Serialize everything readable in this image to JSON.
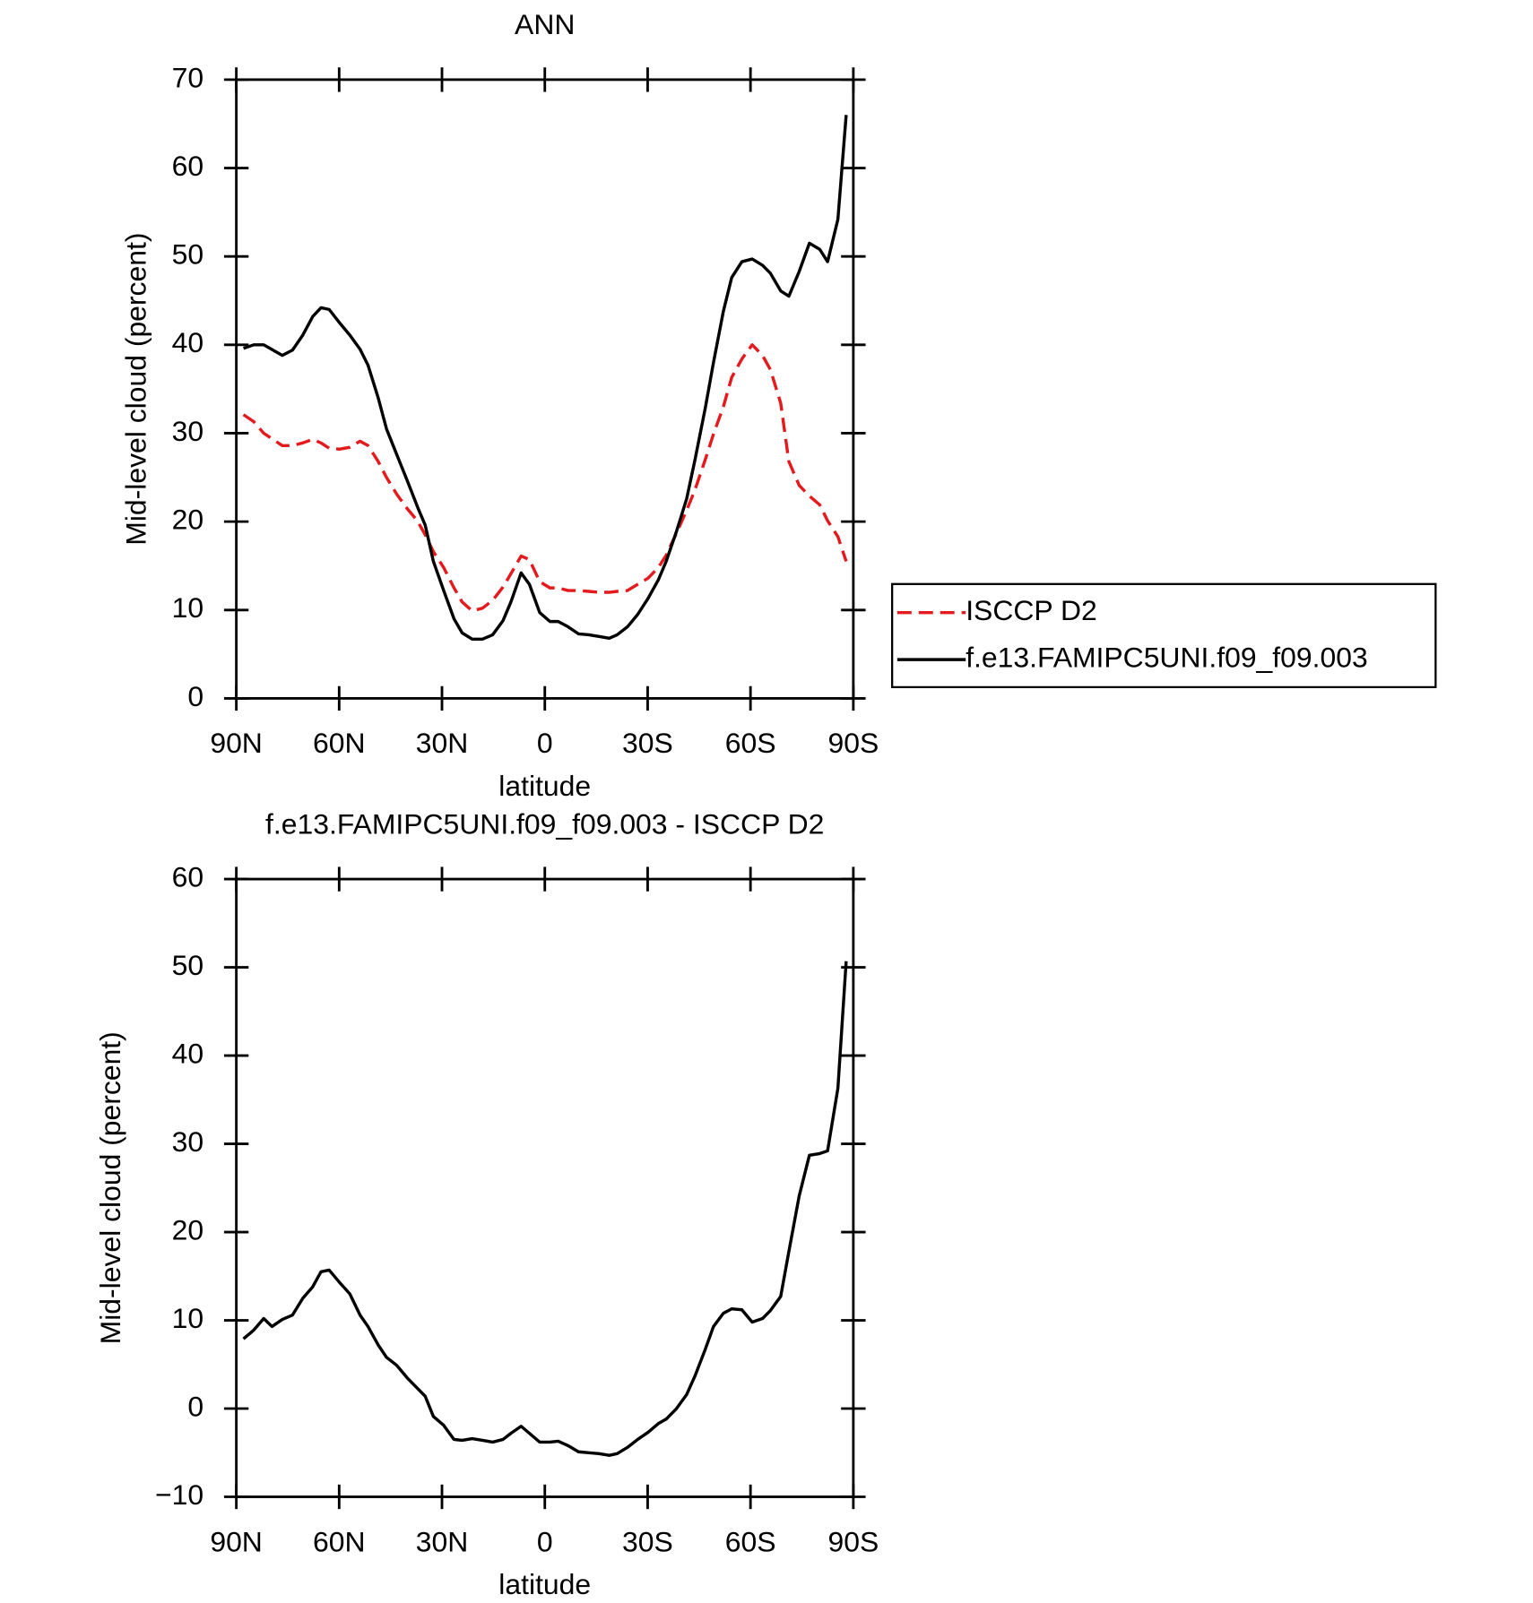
{
  "chart_data": [
    {
      "type": "line",
      "title": "ANN",
      "xlabel": "latitude",
      "ylabel": "Mid-level cloud (percent)",
      "x": [
        87.9,
        84.9,
        82,
        76.6,
        73.6,
        70.6,
        67.7,
        65.3,
        62.9,
        59.9,
        56.9,
        53.9,
        51.6,
        48.6,
        46.2,
        43.2,
        40.2,
        37.2,
        34.9,
        32.5,
        29.5,
        26.5,
        24.1,
        21.2,
        18.2,
        15.2,
        12.2,
        9.9,
        6.9,
        4.5,
        1.5,
        -1.5,
        -3.9,
        -6.8,
        -9.8,
        -12.8,
        -15.8,
        -18.8,
        -21.1,
        -24.1,
        -27.1,
        -30.1,
        -33.1,
        -35.4,
        -38.4,
        -41.4,
        -43.8,
        -46.8,
        -49.2,
        -52.1,
        -54.5,
        -57.5,
        -60.5,
        -63.5,
        -65.8,
        -68.8,
        -71.2,
        -74.2,
        -77.2,
        -80.2,
        -82.5,
        -85.5,
        -87.9
      ],
      "series": [
        {
          "name": "ISCCP D2",
          "color": "#e41a1c",
          "dashed": true,
          "values": [
            32.1,
            31.3,
            30,
            28.6,
            28.6,
            28.9,
            29.3,
            28.9,
            28.3,
            28.2,
            28.4,
            29.1,
            28.6,
            26.8,
            25,
            23.1,
            21.5,
            20.1,
            18.5,
            16.6,
            14.8,
            12.5,
            10.9,
            9.9,
            10.2,
            11.1,
            12.6,
            14.1,
            16.1,
            15.7,
            13.2,
            12.5,
            12.5,
            12.2,
            12.2,
            12.1,
            12,
            12,
            12.1,
            12.2,
            12.9,
            13.6,
            14.8,
            16.2,
            18.7,
            21.3,
            23.6,
            27,
            29.9,
            33,
            36.3,
            38.4,
            40,
            38.8,
            37.2,
            33.4,
            26.8,
            24.1,
            22.9,
            21.9,
            20.1,
            18.3,
            15.5
          ]
        },
        {
          "name": "f.e13.FAMIPC5UNI.f09_f09.003",
          "color": "#000000",
          "dashed": false,
          "values": [
            39.6,
            40,
            40,
            38.8,
            39.4,
            41.1,
            43.2,
            44.2,
            44,
            42.5,
            41.1,
            39.5,
            37.7,
            34,
            30.5,
            27.6,
            24.7,
            21.7,
            19.6,
            15.5,
            12.2,
            9,
            7.4,
            6.7,
            6.7,
            7.2,
            8.8,
            10.9,
            14.2,
            12.9,
            9.7,
            8.7,
            8.7,
            8.1,
            7.3,
            7.2,
            7,
            6.8,
            7.2,
            8.1,
            9.5,
            11.3,
            13.4,
            15.5,
            18.9,
            22.6,
            27,
            32.8,
            38,
            43.8,
            47.6,
            49.4,
            49.7,
            49,
            48.1,
            46.1,
            45.5,
            48.3,
            51.5,
            50.8,
            49.4,
            54.2,
            66
          ]
        }
      ],
      "xlim": [
        90,
        -90
      ],
      "xticks": [
        {
          "value": 90,
          "label": "90N"
        },
        {
          "value": 60,
          "label": "60N"
        },
        {
          "value": 30,
          "label": "30N"
        },
        0,
        {
          "value": -30,
          "label": "30S"
        },
        {
          "value": -60,
          "label": "60S"
        },
        {
          "value": -90,
          "label": "90S"
        }
      ],
      "ylim": [
        0,
        70
      ],
      "yticks": [
        0,
        10,
        20,
        30,
        40,
        50,
        60,
        70
      ],
      "legend": "right"
    },
    {
      "type": "line",
      "title": "f.e13.FAMIPC5UNI.f09_f09.003 - ISCCP D2",
      "xlabel": "latitude",
      "ylabel": "Mid-level cloud (percent)",
      "x": [
        87.9,
        84.9,
        82,
        79.6,
        76.6,
        73.6,
        70.6,
        67.7,
        65.3,
        62.9,
        59.9,
        56.9,
        53.9,
        51.6,
        48.6,
        46.2,
        43.2,
        40.2,
        37.2,
        34.9,
        32.5,
        29.5,
        26.5,
        24.1,
        21.2,
        18.2,
        15.2,
        12.2,
        9.9,
        6.9,
        4.5,
        1.5,
        -1.5,
        -3.9,
        -6.8,
        -9.8,
        -12.8,
        -15.8,
        -18.8,
        -21.1,
        -24.1,
        -27.1,
        -30.1,
        -33.1,
        -35.4,
        -38.4,
        -41.4,
        -43.8,
        -46.8,
        -49.2,
        -52.1,
        -54.5,
        -57.5,
        -60.5,
        -63.5,
        -65.8,
        -68.8,
        -71.2,
        -74.2,
        -77.2,
        -80.2,
        -82.5,
        -85.5,
        -87.9
      ],
      "series": [
        {
          "color": "#000000",
          "dashed": false,
          "values": [
            7.9,
            8.9,
            10.2,
            9.3,
            10.1,
            10.6,
            12.5,
            13.8,
            15.5,
            15.7,
            14.3,
            13,
            10.6,
            9.3,
            7.2,
            5.8,
            4.9,
            3.5,
            2.3,
            1.4,
            -0.9,
            -1.9,
            -3.5,
            -3.6,
            -3.4,
            -3.6,
            -3.8,
            -3.5,
            -2.8,
            -2,
            -2.8,
            -3.8,
            -3.8,
            -3.7,
            -4.2,
            -4.9,
            -5,
            -5.1,
            -5.3,
            -5.1,
            -4.4,
            -3.5,
            -2.7,
            -1.7,
            -1.2,
            0,
            1.6,
            3.7,
            6.7,
            9.3,
            10.8,
            11.3,
            11.2,
            9.8,
            10.2,
            11.1,
            12.7,
            17.8,
            24.1,
            28.7,
            28.9,
            29.2,
            36.3,
            50.7
          ]
        }
      ],
      "xlim": [
        90,
        -90
      ],
      "xticks": [
        {
          "value": 90,
          "label": "90N"
        },
        {
          "value": 60,
          "label": "60N"
        },
        {
          "value": 30,
          "label": "30N"
        },
        0,
        {
          "value": -30,
          "label": "30S"
        },
        {
          "value": -60,
          "label": "60S"
        },
        {
          "value": -90,
          "label": "90S"
        }
      ],
      "ylim": [
        -10,
        60
      ],
      "yticks": [
        {
          "value": -10,
          "label": "−10"
        },
        0,
        10,
        20,
        30,
        40,
        50,
        60
      ]
    }
  ]
}
